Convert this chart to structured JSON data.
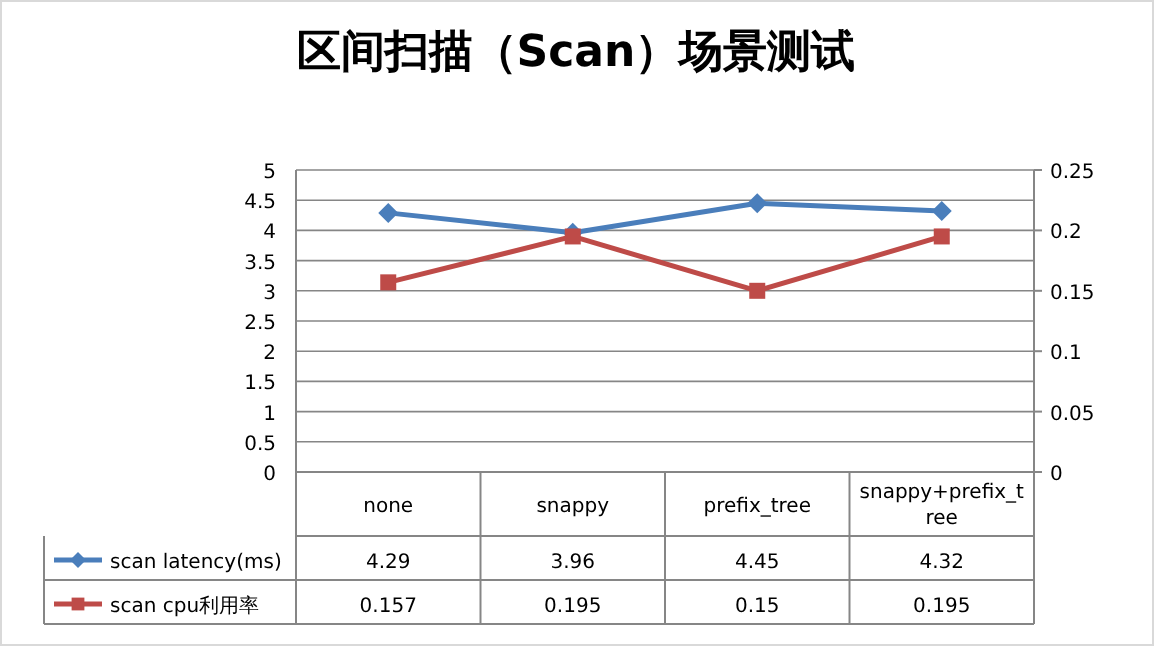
{
  "chart_data": {
    "type": "line",
    "title": "区间扫描（Scan）场景测试",
    "categories": [
      "none",
      "snappy",
      "prefix_tree",
      "snappy+prefix_tree"
    ],
    "series": [
      {
        "name": "scan latency(ms)",
        "color": "#4a7ebb",
        "values": [
          4.29,
          3.96,
          4.45,
          4.32
        ],
        "marker": "diamond"
      },
      {
        "name": "scan cpu利用率",
        "color": "#be4b48",
        "values": [
          0.157,
          0.195,
          0.15,
          0.195
        ],
        "axis": "y2",
        "marker": "square"
      }
    ],
    "ylim": [
      0,
      5
    ],
    "yticks": [
      0,
      0.5,
      1,
      1.5,
      2,
      2.5,
      3,
      3.5,
      4,
      4.5,
      5
    ],
    "y2lim": [
      0,
      0.25
    ],
    "y2ticks": [
      0,
      0.05,
      0.1,
      0.15,
      0.2,
      0.25
    ],
    "grid": "y",
    "data_labels": true,
    "legend": "bottom",
    "line_style": "solid"
  }
}
